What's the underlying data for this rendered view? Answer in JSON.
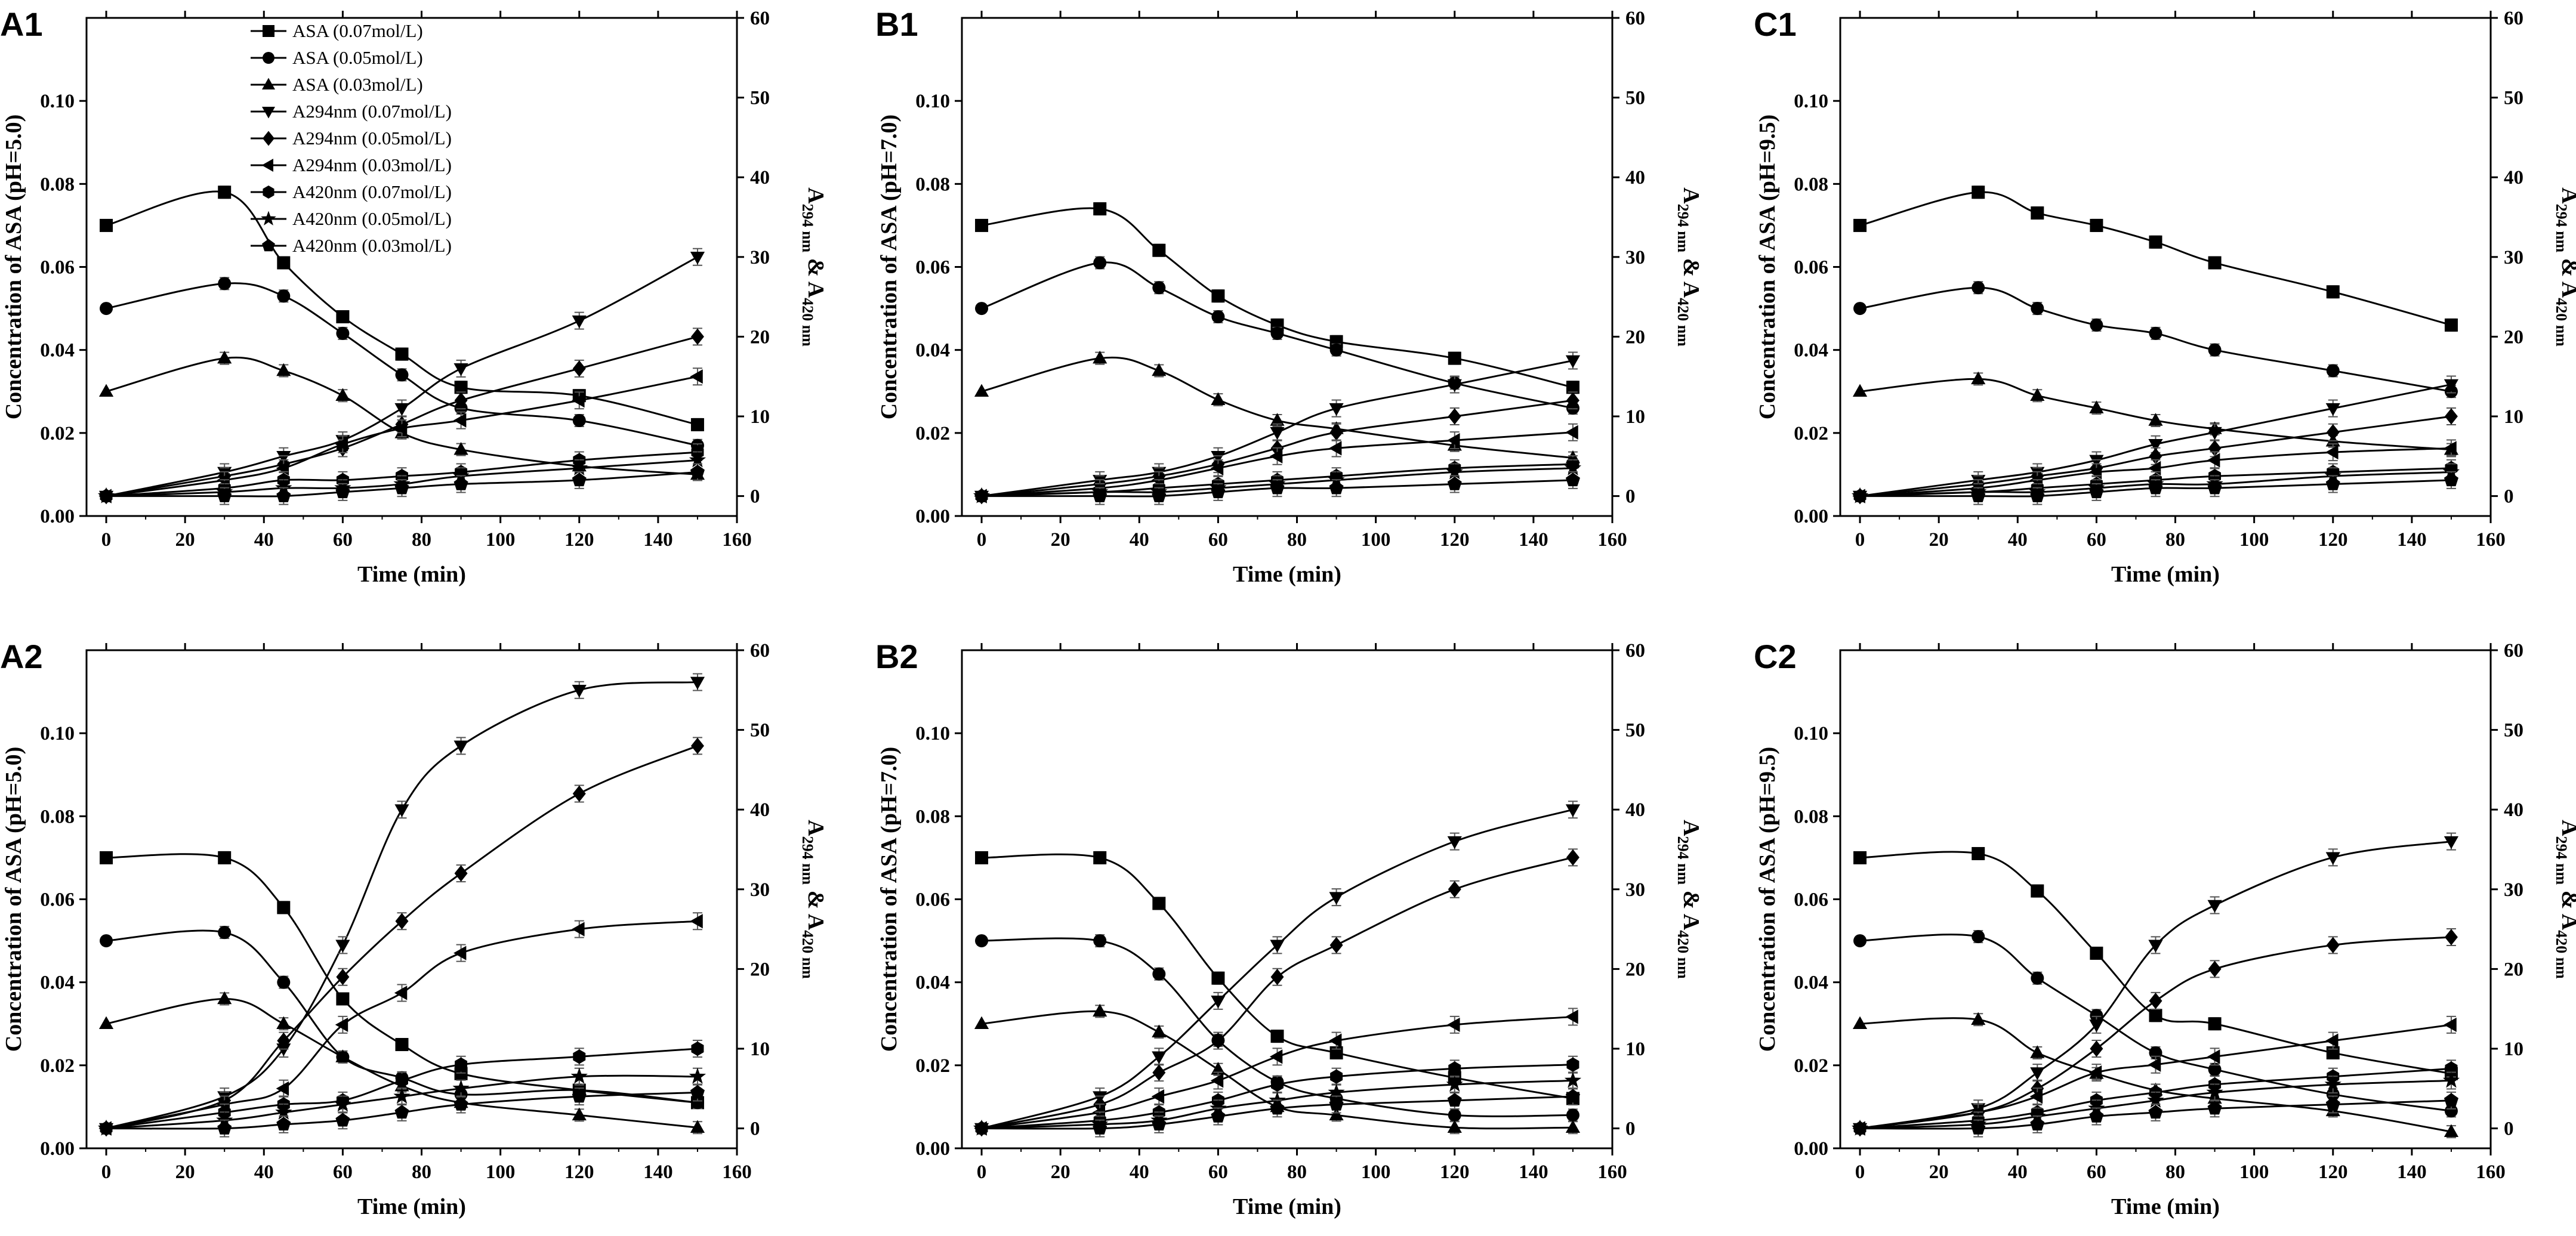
{
  "figure": {
    "series_legend": [
      {
        "key": "ASA7",
        "label": "ASA (0.07mol/L)",
        "marker": "square",
        "axis": "left"
      },
      {
        "key": "ASA5",
        "label": "ASA (0.05mol/L)",
        "marker": "circle",
        "axis": "left"
      },
      {
        "key": "ASA3",
        "label": "ASA (0.03mol/L)",
        "marker": "triangle-up",
        "axis": "left"
      },
      {
        "key": "A294_7",
        "label": "A294nm (0.07mol/L)",
        "marker": "triangle-down",
        "axis": "right"
      },
      {
        "key": "A294_5",
        "label": "A294nm (0.05mol/L)",
        "marker": "diamond",
        "axis": "right"
      },
      {
        "key": "A294_3",
        "label": "A294nm (0.03mol/L)",
        "marker": "triangle-left",
        "axis": "right"
      },
      {
        "key": "A420_7",
        "label": "A420nm (0.07mol/L)",
        "marker": "hexagon",
        "axis": "right"
      },
      {
        "key": "A420_5",
        "label": "A420nm (0.05mol/L)",
        "marker": "star",
        "axis": "right"
      },
      {
        "key": "A420_3",
        "label": "A420nm (0.03mol/L)",
        "marker": "pentagon",
        "axis": "right"
      }
    ]
  },
  "chart_data": [
    {
      "id": "A1",
      "type": "line",
      "panel_label": "A1",
      "xlabel": "Time (min)",
      "ylabel": "Concentration of ASA (pH=5.0)",
      "y2label_prefix": "A",
      "y2label_sub1": "294 nm",
      "y2label_amp": " & A",
      "y2label_sub2": "420 nm",
      "xlim": [
        -5,
        160
      ],
      "ylim": [
        0,
        0.12
      ],
      "y2lim": [
        -2.5,
        60
      ],
      "xticks": [
        "0",
        "20",
        "40",
        "60",
        "80",
        "100",
        "120",
        "140",
        "160"
      ],
      "yticks": [
        "0.00",
        "0.02",
        "0.04",
        "0.06",
        "0.08",
        "0.10"
      ],
      "y2ticks": [
        "0",
        "10",
        "20",
        "30",
        "40",
        "50",
        "60"
      ],
      "x": [
        0,
        30,
        45,
        60,
        75,
        90,
        120,
        150
      ],
      "series": [
        {
          "key": "ASA7",
          "values": [
            0.07,
            0.078,
            0.061,
            0.048,
            0.039,
            0.031,
            0.029,
            0.022
          ]
        },
        {
          "key": "ASA5",
          "values": [
            0.05,
            0.056,
            0.053,
            0.044,
            0.034,
            0.026,
            0.023,
            0.017
          ]
        },
        {
          "key": "ASA3",
          "values": [
            0.03,
            0.038,
            0.035,
            0.029,
            0.02,
            0.016,
            0.012,
            0.01
          ]
        },
        {
          "key": "A294_7",
          "values": [
            0,
            3,
            5,
            7,
            11,
            16,
            22,
            30
          ]
        },
        {
          "key": "A294_5",
          "values": [
            0,
            2.5,
            4,
            6,
            9,
            12,
            16,
            20
          ]
        },
        {
          "key": "A294_3",
          "values": [
            0,
            2,
            3.5,
            6.5,
            8.5,
            9.5,
            12,
            15
          ]
        },
        {
          "key": "A420_7",
          "values": [
            0,
            1,
            2,
            2,
            2.5,
            3,
            4.5,
            5.5
          ]
        },
        {
          "key": "A420_5",
          "values": [
            0,
            0.5,
            1,
            1,
            1.5,
            2.5,
            3.5,
            4.5
          ]
        },
        {
          "key": "A420_3",
          "values": [
            0,
            0,
            0,
            0.5,
            1,
            1.5,
            2,
            3
          ]
        }
      ],
      "legend_position": "top-left"
    },
    {
      "id": "B1",
      "type": "line",
      "panel_label": "B1",
      "xlabel": "Time (min)",
      "ylabel": "Concentration of ASA (pH=7.0)",
      "y2label_prefix": "A",
      "y2label_sub1": "294 nm",
      "y2label_amp": " & A",
      "y2label_sub2": "420 nm",
      "xlim": [
        -5,
        160
      ],
      "ylim": [
        0,
        0.12
      ],
      "y2lim": [
        -2.5,
        60
      ],
      "xticks": [
        "0",
        "20",
        "40",
        "60",
        "80",
        "100",
        "120",
        "140",
        "160"
      ],
      "yticks": [
        "0.00",
        "0.02",
        "0.04",
        "0.06",
        "0.08",
        "0.10"
      ],
      "y2ticks": [
        "0",
        "10",
        "20",
        "30",
        "40",
        "50",
        "60"
      ],
      "x": [
        0,
        30,
        45,
        60,
        75,
        90,
        120,
        150
      ],
      "series": [
        {
          "key": "ASA7",
          "values": [
            0.07,
            0.074,
            0.064,
            0.053,
            0.046,
            0.042,
            0.038,
            0.031
          ]
        },
        {
          "key": "ASA5",
          "values": [
            0.05,
            0.061,
            0.055,
            0.048,
            0.044,
            0.04,
            0.032,
            0.026
          ]
        },
        {
          "key": "ASA3",
          "values": [
            0.03,
            0.038,
            0.035,
            0.028,
            0.023,
            0.021,
            0.017,
            0.014
          ]
        },
        {
          "key": "A294_7",
          "values": [
            0,
            2,
            3,
            5,
            8,
            11,
            14,
            17
          ]
        },
        {
          "key": "A294_5",
          "values": [
            0,
            1.5,
            2.5,
            4,
            6,
            8,
            10,
            12
          ]
        },
        {
          "key": "A294_3",
          "values": [
            0,
            1,
            2,
            3.5,
            5,
            6,
            7,
            8
          ]
        },
        {
          "key": "A420_7",
          "values": [
            0,
            0.5,
            1,
            1.5,
            2,
            2.5,
            3.5,
            4
          ]
        },
        {
          "key": "A420_5",
          "values": [
            0,
            0.5,
            0.5,
            1,
            1.5,
            2,
            3,
            3.5
          ]
        },
        {
          "key": "A420_3",
          "values": [
            0,
            0,
            0,
            0.5,
            1,
            1,
            1.5,
            2
          ]
        }
      ]
    },
    {
      "id": "C1",
      "type": "line",
      "panel_label": "C1",
      "xlabel": "Time (min)",
      "ylabel": "Concentration of ASA (pH=9.5)",
      "y2label_prefix": "A",
      "y2label_sub1": "294 nm",
      "y2label_amp": " & A",
      "y2label_sub2": "420 nm",
      "xlim": [
        -5,
        160
      ],
      "ylim": [
        0,
        0.12
      ],
      "y2lim": [
        -2.5,
        60
      ],
      "xticks": [
        "0",
        "20",
        "40",
        "60",
        "80",
        "100",
        "120",
        "140",
        "160"
      ],
      "yticks": [
        "0.00",
        "0.02",
        "0.04",
        "0.06",
        "0.08",
        "0.10"
      ],
      "y2ticks": [
        "0",
        "10",
        "20",
        "30",
        "40",
        "50",
        "60"
      ],
      "x": [
        0,
        30,
        45,
        60,
        75,
        90,
        120,
        150
      ],
      "series": [
        {
          "key": "ASA7",
          "values": [
            0.07,
            0.078,
            0.073,
            0.07,
            0.066,
            0.061,
            0.054,
            0.046
          ]
        },
        {
          "key": "ASA5",
          "values": [
            0.05,
            0.055,
            0.05,
            0.046,
            0.044,
            0.04,
            0.035,
            0.03
          ]
        },
        {
          "key": "ASA3",
          "values": [
            0.03,
            0.033,
            0.029,
            0.026,
            0.023,
            0.021,
            0.018,
            0.016
          ]
        },
        {
          "key": "A294_7",
          "values": [
            0,
            2,
            3,
            4.5,
            6.5,
            8,
            11,
            14
          ]
        },
        {
          "key": "A294_5",
          "values": [
            0,
            1.5,
            2.5,
            3.5,
            5,
            6,
            8,
            10
          ]
        },
        {
          "key": "A294_3",
          "values": [
            0,
            1,
            2,
            3,
            3.5,
            4.5,
            5.5,
            6
          ]
        },
        {
          "key": "A420_7",
          "values": [
            0,
            0.5,
            1,
            1.5,
            2,
            2.5,
            3,
            3.5
          ]
        },
        {
          "key": "A420_5",
          "values": [
            0,
            0.5,
            0.5,
            1,
            1.5,
            1.5,
            2.5,
            3
          ]
        },
        {
          "key": "A420_3",
          "values": [
            0,
            0,
            0,
            0.5,
            1,
            1,
            1.5,
            2
          ]
        }
      ]
    },
    {
      "id": "A2",
      "type": "line",
      "panel_label": "A2",
      "xlabel": "Time (min)",
      "ylabel": "Concentration of ASA (pH=5.0)",
      "y2label_prefix": "A",
      "y2label_sub1": "294 nm",
      "y2label_amp": " & A",
      "y2label_sub2": "420 nm",
      "xlim": [
        -5,
        160
      ],
      "ylim": [
        0,
        0.12
      ],
      "y2lim": [
        -2.5,
        60
      ],
      "xticks": [
        "0",
        "20",
        "40",
        "60",
        "80",
        "100",
        "120",
        "140",
        "160"
      ],
      "yticks": [
        "0.00",
        "0.02",
        "0.04",
        "0.06",
        "0.08",
        "0.10"
      ],
      "y2ticks": [
        "0",
        "10",
        "20",
        "30",
        "40",
        "50",
        "60"
      ],
      "x": [
        0,
        30,
        45,
        60,
        75,
        90,
        120,
        150
      ],
      "series": [
        {
          "key": "ASA7",
          "values": [
            0.07,
            0.07,
            0.058,
            0.036,
            0.025,
            0.018,
            0.014,
            0.011
          ]
        },
        {
          "key": "ASA5",
          "values": [
            0.05,
            0.052,
            0.04,
            0.022,
            0.017,
            0.013,
            0.014,
            0.011
          ]
        },
        {
          "key": "ASA3",
          "values": [
            0.03,
            0.036,
            0.03,
            0.022,
            0.015,
            0.011,
            0.008,
            0.005
          ]
        },
        {
          "key": "A294_7",
          "values": [
            0,
            4,
            10,
            23,
            40,
            48,
            55,
            56
          ]
        },
        {
          "key": "A294_5",
          "values": [
            0,
            3.5,
            11,
            19,
            26,
            32,
            42,
            48
          ]
        },
        {
          "key": "A294_3",
          "values": [
            0,
            3,
            5,
            13,
            17,
            22,
            25,
            26
          ]
        },
        {
          "key": "A420_7",
          "values": [
            0,
            2,
            3,
            3.5,
            6,
            8,
            9,
            10
          ]
        },
        {
          "key": "A420_5",
          "values": [
            0,
            1,
            2,
            3,
            4,
            5,
            6.5,
            6.5
          ]
        },
        {
          "key": "A420_3",
          "values": [
            0,
            0,
            0.5,
            1,
            2,
            3,
            4,
            4.5
          ]
        }
      ]
    },
    {
      "id": "B2",
      "type": "line",
      "panel_label": "B2",
      "xlabel": "Time (min)",
      "ylabel": "Concentration of ASA (pH=7.0)",
      "y2label_prefix": "A",
      "y2label_sub1": "294 nm",
      "y2label_amp": " & A",
      "y2label_sub2": "420 nm",
      "xlim": [
        -5,
        160
      ],
      "ylim": [
        0,
        0.12
      ],
      "y2lim": [
        -2.5,
        60
      ],
      "xticks": [
        "0",
        "20",
        "40",
        "60",
        "80",
        "100",
        "120",
        "140",
        "160"
      ],
      "yticks": [
        "0.00",
        "0.02",
        "0.04",
        "0.06",
        "0.08",
        "0.10"
      ],
      "y2ticks": [
        "0",
        "10",
        "20",
        "30",
        "40",
        "50",
        "60"
      ],
      "x": [
        0,
        30,
        45,
        60,
        75,
        90,
        120,
        150
      ],
      "series": [
        {
          "key": "ASA7",
          "values": [
            0.07,
            0.07,
            0.059,
            0.041,
            0.027,
            0.023,
            0.017,
            0.012
          ]
        },
        {
          "key": "ASA5",
          "values": [
            0.05,
            0.05,
            0.042,
            0.026,
            0.016,
            0.012,
            0.008,
            0.008
          ]
        },
        {
          "key": "ASA3",
          "values": [
            0.03,
            0.033,
            0.028,
            0.019,
            0.01,
            0.008,
            0.005,
            0.005
          ]
        },
        {
          "key": "A294_7",
          "values": [
            0,
            4,
            9,
            16,
            23,
            29,
            36,
            40
          ]
        },
        {
          "key": "A294_5",
          "values": [
            0,
            3,
            7,
            11,
            19,
            23,
            30,
            34
          ]
        },
        {
          "key": "A294_3",
          "values": [
            0,
            2,
            4,
            6,
            9,
            11,
            13,
            14
          ]
        },
        {
          "key": "A420_7",
          "values": [
            0,
            1,
            2,
            3.5,
            5.5,
            6.5,
            7.5,
            8
          ]
        },
        {
          "key": "A420_5",
          "values": [
            0,
            0.5,
            1,
            2.5,
            3.5,
            4.5,
            5.5,
            6
          ]
        },
        {
          "key": "A420_3",
          "values": [
            0,
            0,
            0.5,
            1.5,
            2.5,
            3,
            3.5,
            4
          ]
        }
      ]
    },
    {
      "id": "C2",
      "type": "line",
      "panel_label": "C2",
      "xlabel": "Time (min)",
      "ylabel": "Concentration of ASA (pH=9.5)",
      "y2label_prefix": "A",
      "y2label_sub1": "294 nm",
      "y2label_amp": " & A",
      "y2label_sub2": "420 nm",
      "xlim": [
        -5,
        160
      ],
      "ylim": [
        0,
        0.12
      ],
      "y2lim": [
        -2.5,
        60
      ],
      "xticks": [
        "0",
        "20",
        "40",
        "60",
        "80",
        "100",
        "120",
        "140",
        "160"
      ],
      "yticks": [
        "0.00",
        "0.02",
        "0.04",
        "0.06",
        "0.08",
        "0.10"
      ],
      "y2ticks": [
        "0",
        "10",
        "20",
        "30",
        "40",
        "50",
        "60"
      ],
      "x": [
        0,
        30,
        45,
        60,
        75,
        90,
        120,
        150
      ],
      "series": [
        {
          "key": "ASA7",
          "values": [
            0.07,
            0.071,
            0.062,
            0.047,
            0.032,
            0.03,
            0.023,
            0.018
          ]
        },
        {
          "key": "ASA5",
          "values": [
            0.05,
            0.051,
            0.041,
            0.032,
            0.023,
            0.019,
            0.013,
            0.009
          ]
        },
        {
          "key": "ASA3",
          "values": [
            0.03,
            0.031,
            0.023,
            0.018,
            0.014,
            0.012,
            0.009,
            0.004
          ]
        },
        {
          "key": "A294_7",
          "values": [
            0,
            2.5,
            7,
            13,
            23,
            28,
            34,
            36
          ]
        },
        {
          "key": "A294_5",
          "values": [
            0,
            2,
            5,
            10,
            16,
            20,
            23,
            24
          ]
        },
        {
          "key": "A294_3",
          "values": [
            0,
            2,
            4,
            7,
            8,
            9,
            11,
            13
          ]
        },
        {
          "key": "A420_7",
          "values": [
            0,
            1,
            2,
            3.5,
            4.5,
            5.5,
            6.5,
            7.5
          ]
        },
        {
          "key": "A420_5",
          "values": [
            0,
            0.5,
            1.5,
            2.5,
            3.5,
            4.5,
            5.5,
            6
          ]
        },
        {
          "key": "A420_3",
          "values": [
            0,
            0,
            0.5,
            1.5,
            2,
            2.5,
            3,
            3.5
          ]
        }
      ]
    }
  ]
}
